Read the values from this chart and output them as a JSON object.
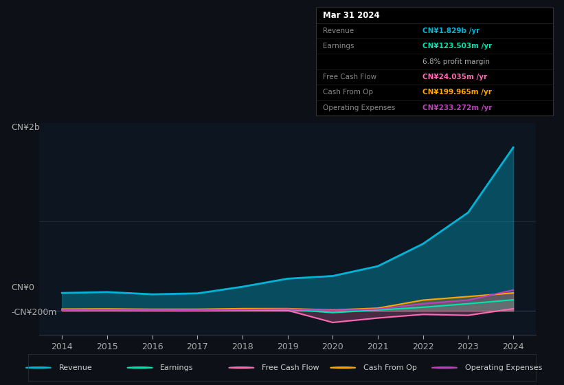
{
  "background_color": "#0d1117",
  "plot_bg_color": "#0d1520",
  "grid_color": "#1e2a3a",
  "title": "Mar 31 2024",
  "ylabel_top": "CN¥2b",
  "ylabel_zero": "CN¥0",
  "ylabel_neg": "-CN¥200m",
  "years": [
    2014,
    2015,
    2016,
    2017,
    2018,
    2019,
    2020,
    2021,
    2022,
    2023,
    2024
  ],
  "revenue": [
    200,
    210,
    185,
    195,
    270,
    360,
    390,
    500,
    750,
    1100,
    1829
  ],
  "earnings": [
    15,
    18,
    12,
    10,
    20,
    18,
    -20,
    10,
    40,
    80,
    123.503
  ],
  "free_cash_flow": [
    5,
    8,
    5,
    3,
    10,
    5,
    -130,
    -80,
    -40,
    -50,
    24.035
  ],
  "cash_from_op": [
    20,
    22,
    18,
    18,
    25,
    25,
    10,
    30,
    120,
    160,
    199.965
  ],
  "operating_expenses": [
    10,
    12,
    10,
    8,
    15,
    20,
    5,
    20,
    80,
    120,
    233.272
  ],
  "revenue_color": "#00b4d8",
  "earnings_color": "#00e5b0",
  "free_cash_flow_color": "#ff69b4",
  "cash_from_op_color": "#ffa500",
  "operating_expenses_color": "#bf40bf",
  "tooltip_bg": "#000000",
  "tooltip_border": "#333333",
  "tooltip_title": "Mar 31 2024",
  "tooltip_revenue_label": "Revenue",
  "tooltip_revenue_value": "CN¥1.829b /yr",
  "tooltip_earnings_label": "Earnings",
  "tooltip_earnings_value": "CN¥123.503m /yr",
  "tooltip_margin": "6.8% profit margin",
  "tooltip_fcf_label": "Free Cash Flow",
  "tooltip_fcf_value": "CN¥24.035m /yr",
  "tooltip_cashop_label": "Cash From Op",
  "tooltip_cashop_value": "CN¥199.965m /yr",
  "tooltip_opex_label": "Operating Expenses",
  "tooltip_opex_value": "CN¥233.272m /yr",
  "ylim_min": -270,
  "ylim_max": 2100,
  "legend_labels": [
    "Revenue",
    "Earnings",
    "Free Cash Flow",
    "Cash From Op",
    "Operating Expenses"
  ]
}
